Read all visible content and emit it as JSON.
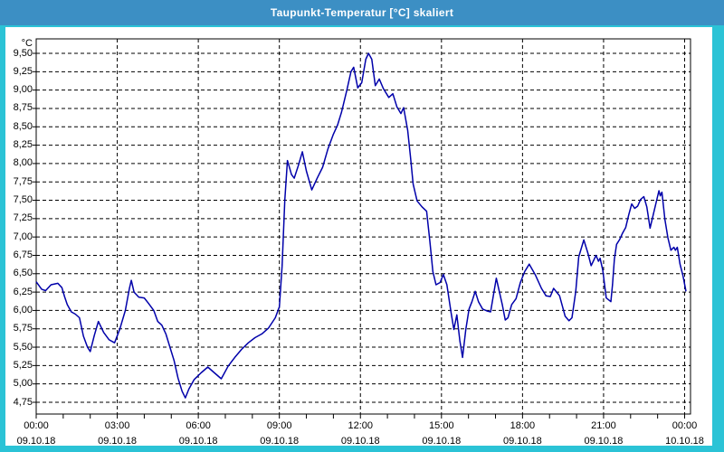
{
  "window": {
    "title": "Taupunkt-Temperatur [°C] skaliert"
  },
  "colors": {
    "titlebar": "#3c8fc4",
    "frame": "#2bc3d6",
    "plot_background": "#ffffff",
    "grid": "#000000",
    "axis": "#000000",
    "label_text": "#000000",
    "title_text": "#ffffff",
    "line": "#0000aa"
  },
  "chart_data": {
    "type": "line",
    "title": "Taupunkt-Temperatur [°C] skaliert",
    "unit_label": "°C",
    "ylabel": "Taupunkt-Temperatur",
    "ylim": [
      4.75,
      9.5
    ],
    "y_tick_step": 0.25,
    "y_ticks": [
      9.5,
      9.25,
      9.0,
      8.75,
      8.5,
      8.25,
      8.0,
      7.75,
      7.5,
      7.25,
      7.0,
      6.75,
      6.5,
      6.25,
      6.0,
      5.75,
      5.5,
      5.25,
      5.0,
      4.75
    ],
    "y_tick_labels": [
      "9,50",
      "9,25",
      "9,00",
      "8,75",
      "8,50",
      "8,25",
      "8,00",
      "7,75",
      "7,50",
      "7,25",
      "7,00",
      "6,75",
      "6,50",
      "6,25",
      "6,00",
      "5,75",
      "5,50",
      "5,25",
      "5,00",
      "4,75"
    ],
    "xlim_hours": [
      0,
      24.2
    ],
    "x_minor_tick_hours": 1,
    "grid": "both-dashed",
    "x_ticks": [
      {
        "hour": 0,
        "time": "00:00",
        "date": "09.10.18"
      },
      {
        "hour": 3,
        "time": "03:00",
        "date": "09.10.18"
      },
      {
        "hour": 6,
        "time": "06:00",
        "date": "09.10.18"
      },
      {
        "hour": 9,
        "time": "09:00",
        "date": "09.10.18"
      },
      {
        "hour": 12,
        "time": "12:00",
        "date": "09.10.18"
      },
      {
        "hour": 15,
        "time": "15:00",
        "date": "09.10.18"
      },
      {
        "hour": 18,
        "time": "18:00",
        "date": "09.10.18"
      },
      {
        "hour": 21,
        "time": "21:00",
        "date": "09.10.18"
      },
      {
        "hour": 24,
        "time": "00:00",
        "date": "10.10.18"
      }
    ],
    "series": [
      {
        "name": "Taupunkt-Temperatur",
        "points": [
          [
            0.0,
            6.39
          ],
          [
            0.2,
            6.29
          ],
          [
            0.35,
            6.27
          ],
          [
            0.55,
            6.35
          ],
          [
            0.8,
            6.37
          ],
          [
            0.95,
            6.31
          ],
          [
            1.05,
            6.19
          ],
          [
            1.15,
            6.08
          ],
          [
            1.3,
            5.98
          ],
          [
            1.45,
            5.95
          ],
          [
            1.6,
            5.9
          ],
          [
            1.75,
            5.65
          ],
          [
            1.9,
            5.5
          ],
          [
            2.0,
            5.44
          ],
          [
            2.15,
            5.66
          ],
          [
            2.3,
            5.85
          ],
          [
            2.5,
            5.7
          ],
          [
            2.7,
            5.6
          ],
          [
            2.9,
            5.56
          ],
          [
            3.1,
            5.75
          ],
          [
            3.3,
            6.0
          ],
          [
            3.45,
            6.3
          ],
          [
            3.52,
            6.41
          ],
          [
            3.62,
            6.25
          ],
          [
            3.8,
            6.18
          ],
          [
            4.0,
            6.17
          ],
          [
            4.15,
            6.1
          ],
          [
            4.35,
            6.0
          ],
          [
            4.5,
            5.85
          ],
          [
            4.65,
            5.8
          ],
          [
            4.8,
            5.68
          ],
          [
            4.95,
            5.5
          ],
          [
            5.1,
            5.32
          ],
          [
            5.25,
            5.08
          ],
          [
            5.4,
            4.9
          ],
          [
            5.52,
            4.81
          ],
          [
            5.65,
            4.93
          ],
          [
            5.85,
            5.06
          ],
          [
            6.1,
            5.15
          ],
          [
            6.35,
            5.23
          ],
          [
            6.6,
            5.15
          ],
          [
            6.85,
            5.07
          ],
          [
            7.1,
            5.24
          ],
          [
            7.35,
            5.36
          ],
          [
            7.6,
            5.47
          ],
          [
            7.85,
            5.56
          ],
          [
            8.1,
            5.63
          ],
          [
            8.35,
            5.68
          ],
          [
            8.6,
            5.76
          ],
          [
            8.85,
            5.9
          ],
          [
            9.0,
            6.05
          ],
          [
            9.1,
            6.6
          ],
          [
            9.2,
            7.5
          ],
          [
            9.3,
            8.04
          ],
          [
            9.45,
            7.85
          ],
          [
            9.55,
            7.8
          ],
          [
            9.7,
            7.97
          ],
          [
            9.85,
            8.16
          ],
          [
            10.0,
            7.9
          ],
          [
            10.2,
            7.64
          ],
          [
            10.4,
            7.8
          ],
          [
            10.6,
            7.95
          ],
          [
            10.8,
            8.2
          ],
          [
            11.0,
            8.4
          ],
          [
            11.15,
            8.52
          ],
          [
            11.3,
            8.7
          ],
          [
            11.5,
            9.0
          ],
          [
            11.65,
            9.25
          ],
          [
            11.75,
            9.31
          ],
          [
            11.9,
            9.03
          ],
          [
            12.05,
            9.1
          ],
          [
            12.2,
            9.42
          ],
          [
            12.3,
            9.5
          ],
          [
            12.42,
            9.42
          ],
          [
            12.55,
            9.06
          ],
          [
            12.7,
            9.15
          ],
          [
            12.85,
            9.02
          ],
          [
            13.05,
            8.9
          ],
          [
            13.2,
            8.95
          ],
          [
            13.35,
            8.77
          ],
          [
            13.5,
            8.68
          ],
          [
            13.6,
            8.76
          ],
          [
            13.75,
            8.45
          ],
          [
            13.85,
            8.1
          ],
          [
            13.95,
            7.72
          ],
          [
            14.1,
            7.49
          ],
          [
            14.28,
            7.41
          ],
          [
            14.45,
            7.35
          ],
          [
            14.57,
            6.94
          ],
          [
            14.68,
            6.53
          ],
          [
            14.8,
            6.35
          ],
          [
            14.95,
            6.38
          ],
          [
            15.07,
            6.49
          ],
          [
            15.2,
            6.35
          ],
          [
            15.35,
            5.98
          ],
          [
            15.46,
            5.74
          ],
          [
            15.57,
            5.94
          ],
          [
            15.68,
            5.59
          ],
          [
            15.78,
            5.36
          ],
          [
            15.9,
            5.74
          ],
          [
            16.02,
            6.02
          ],
          [
            16.13,
            6.12
          ],
          [
            16.25,
            6.26
          ],
          [
            16.37,
            6.12
          ],
          [
            16.52,
            6.02
          ],
          [
            16.7,
            5.99
          ],
          [
            16.82,
            5.98
          ],
          [
            16.92,
            6.2
          ],
          [
            17.03,
            6.44
          ],
          [
            17.14,
            6.26
          ],
          [
            17.25,
            6.08
          ],
          [
            17.36,
            5.87
          ],
          [
            17.46,
            5.9
          ],
          [
            17.6,
            6.08
          ],
          [
            17.76,
            6.16
          ],
          [
            17.92,
            6.38
          ],
          [
            18.08,
            6.53
          ],
          [
            18.25,
            6.63
          ],
          [
            18.48,
            6.48
          ],
          [
            18.7,
            6.3
          ],
          [
            18.87,
            6.2
          ],
          [
            19.03,
            6.19
          ],
          [
            19.15,
            6.3
          ],
          [
            19.37,
            6.2
          ],
          [
            19.58,
            5.92
          ],
          [
            19.72,
            5.86
          ],
          [
            19.83,
            5.9
          ],
          [
            19.97,
            6.26
          ],
          [
            20.08,
            6.73
          ],
          [
            20.27,
            6.96
          ],
          [
            20.42,
            6.78
          ],
          [
            20.54,
            6.61
          ],
          [
            20.72,
            6.75
          ],
          [
            20.81,
            6.67
          ],
          [
            20.87,
            6.71
          ],
          [
            20.97,
            6.55
          ],
          [
            21.1,
            6.17
          ],
          [
            21.27,
            6.12
          ],
          [
            21.33,
            6.35
          ],
          [
            21.4,
            6.7
          ],
          [
            21.48,
            6.9
          ],
          [
            21.6,
            6.97
          ],
          [
            21.7,
            7.05
          ],
          [
            21.82,
            7.13
          ],
          [
            21.93,
            7.3
          ],
          [
            22.04,
            7.45
          ],
          [
            22.15,
            7.39
          ],
          [
            22.26,
            7.42
          ],
          [
            22.37,
            7.51
          ],
          [
            22.49,
            7.55
          ],
          [
            22.6,
            7.41
          ],
          [
            22.72,
            7.12
          ],
          [
            22.88,
            7.37
          ],
          [
            23.05,
            7.63
          ],
          [
            23.1,
            7.56
          ],
          [
            23.16,
            7.61
          ],
          [
            23.27,
            7.24
          ],
          [
            23.38,
            6.99
          ],
          [
            23.49,
            6.82
          ],
          [
            23.6,
            6.86
          ],
          [
            23.66,
            6.82
          ],
          [
            23.73,
            6.86
          ],
          [
            23.83,
            6.63
          ],
          [
            23.94,
            6.47
          ],
          [
            24.05,
            6.26
          ]
        ]
      }
    ]
  }
}
